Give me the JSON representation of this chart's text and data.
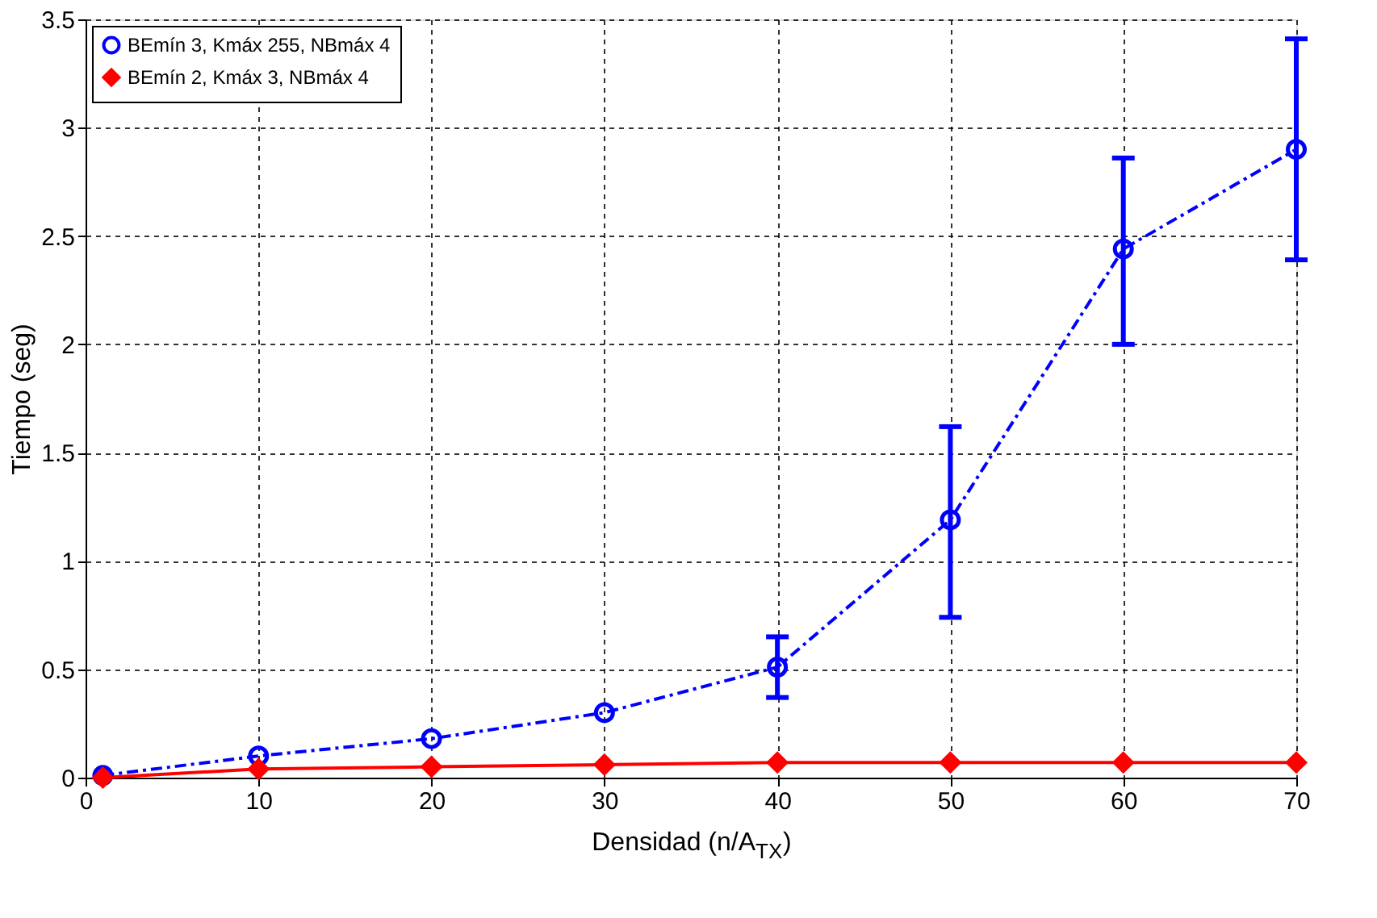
{
  "chart_data": {
    "type": "line",
    "xlabel": "Densidad (n/A$_{TX}$)",
    "ylabel": "Tiempo (seg)",
    "x": [
      1,
      10,
      20,
      30,
      40,
      50,
      60,
      70
    ],
    "series": [
      {
        "name": "BEmín 3, Kmáx 255, NBmáx 4",
        "color": "#0000ff",
        "marker": "circle",
        "line_style": "dashdot",
        "values": [
          0.01,
          0.1,
          0.18,
          0.3,
          0.51,
          1.19,
          2.44,
          2.9
        ],
        "errors": [
          null,
          null,
          null,
          null,
          [
            0.37,
            0.65
          ],
          [
            0.74,
            1.62
          ],
          [
            2.0,
            2.86
          ],
          [
            2.39,
            3.41
          ]
        ]
      },
      {
        "name": "BEmín 2, Kmáx 3, NBmáx 4",
        "color": "#ff0000",
        "marker": "diamond",
        "line_style": "solid",
        "values": [
          0.0,
          0.04,
          0.05,
          0.06,
          0.07,
          0.07,
          0.07,
          0.07
        ]
      }
    ],
    "xlim": [
      0,
      70
    ],
    "xticks": [
      0,
      10,
      20,
      30,
      40,
      50,
      60,
      70
    ],
    "ylim": [
      0,
      3.5
    ],
    "yticks": [
      0,
      0.5,
      1,
      1.5,
      2,
      2.5,
      3,
      3.5
    ],
    "grid": true,
    "legend": "top left"
  }
}
